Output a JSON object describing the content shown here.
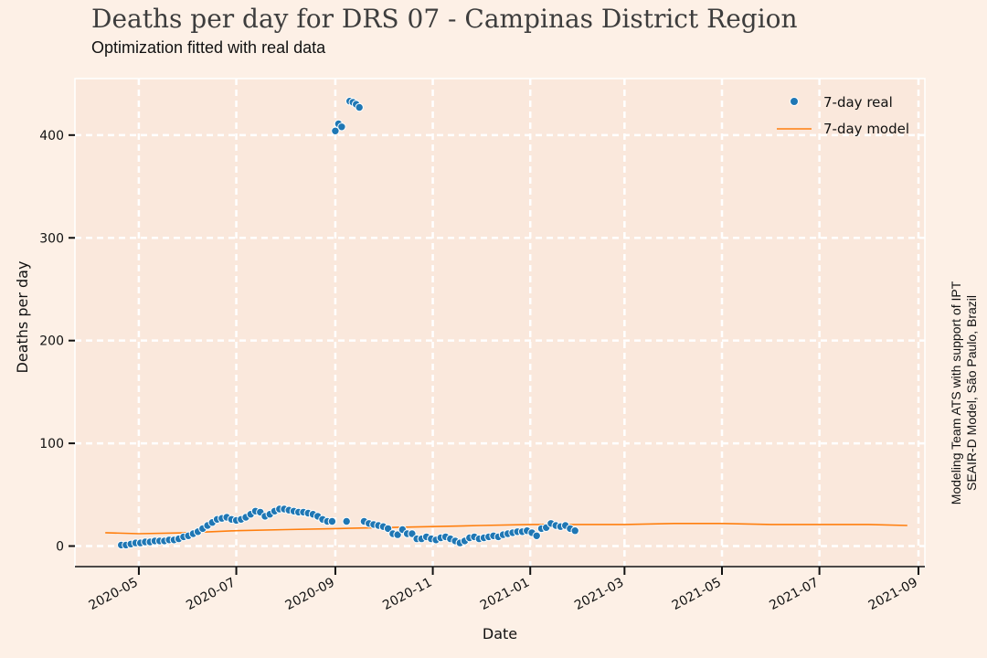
{
  "header": {
    "title": "Deaths per day for DRS 07 - Campinas District Region",
    "subtitle": "Optimization fitted with real data"
  },
  "credit": {
    "line1": "Modeling Team ATS with support of IPT",
    "line2": "SEAIR-D Model, São Paulo, Brazil"
  },
  "colors": {
    "background": "#fdf0e6",
    "plot_background": "#fae8dc",
    "grid": "#ffffff",
    "real": "#1f77b4",
    "model": "#ff7f0e"
  },
  "chart_data": {
    "type": "scatter",
    "xlabel": "Date",
    "ylabel": "Deaths per day",
    "xlim": [
      "2020-03-22",
      "2021-09-05"
    ],
    "ylim": [
      -20,
      455
    ],
    "x_ticks": [
      "2020-05",
      "2020-07",
      "2020-09",
      "2020-11",
      "2021-01",
      "2021-03",
      "2021-05",
      "2021-07",
      "2021-09"
    ],
    "y_ticks": [
      0,
      100,
      200,
      300,
      400
    ],
    "grid": true,
    "legend_position": "top-right",
    "series": [
      {
        "name": "7-day real",
        "kind": "scatter",
        "points": [
          [
            "2020-04-20",
            1
          ],
          [
            "2020-04-23",
            1
          ],
          [
            "2020-04-26",
            2
          ],
          [
            "2020-04-29",
            3
          ],
          [
            "2020-05-02",
            3
          ],
          [
            "2020-05-05",
            4
          ],
          [
            "2020-05-08",
            4
          ],
          [
            "2020-05-11",
            5
          ],
          [
            "2020-05-14",
            5
          ],
          [
            "2020-05-17",
            5
          ],
          [
            "2020-05-20",
            6
          ],
          [
            "2020-05-23",
            6
          ],
          [
            "2020-05-26",
            7
          ],
          [
            "2020-05-29",
            9
          ],
          [
            "2020-06-01",
            10
          ],
          [
            "2020-06-04",
            12
          ],
          [
            "2020-06-07",
            14
          ],
          [
            "2020-06-10",
            17
          ],
          [
            "2020-06-13",
            20
          ],
          [
            "2020-06-16",
            23
          ],
          [
            "2020-06-19",
            26
          ],
          [
            "2020-06-22",
            27
          ],
          [
            "2020-06-25",
            28
          ],
          [
            "2020-06-28",
            26
          ],
          [
            "2020-07-01",
            25
          ],
          [
            "2020-07-04",
            26
          ],
          [
            "2020-07-07",
            28
          ],
          [
            "2020-07-10",
            31
          ],
          [
            "2020-07-13",
            34
          ],
          [
            "2020-07-16",
            33
          ],
          [
            "2020-07-19",
            29
          ],
          [
            "2020-07-22",
            31
          ],
          [
            "2020-07-25",
            34
          ],
          [
            "2020-07-28",
            36
          ],
          [
            "2020-07-31",
            36
          ],
          [
            "2020-08-03",
            35
          ],
          [
            "2020-08-06",
            34
          ],
          [
            "2020-08-09",
            33
          ],
          [
            "2020-08-12",
            33
          ],
          [
            "2020-08-15",
            32
          ],
          [
            "2020-08-18",
            31
          ],
          [
            "2020-08-21",
            29
          ],
          [
            "2020-08-24",
            26
          ],
          [
            "2020-08-27",
            24
          ],
          [
            "2020-08-30",
            24
          ],
          [
            "2020-09-01",
            404
          ],
          [
            "2020-09-03",
            411
          ],
          [
            "2020-09-05",
            408
          ],
          [
            "2020-09-08",
            24
          ],
          [
            "2020-09-10",
            433
          ],
          [
            "2020-09-12",
            432
          ],
          [
            "2020-09-14",
            430
          ],
          [
            "2020-09-16",
            427
          ],
          [
            "2020-09-19",
            24
          ],
          [
            "2020-09-22",
            22
          ],
          [
            "2020-09-25",
            21
          ],
          [
            "2020-09-28",
            20
          ],
          [
            "2020-10-01",
            19
          ],
          [
            "2020-10-04",
            17
          ],
          [
            "2020-10-07",
            12
          ],
          [
            "2020-10-10",
            11
          ],
          [
            "2020-10-13",
            16
          ],
          [
            "2020-10-16",
            12
          ],
          [
            "2020-10-19",
            12
          ],
          [
            "2020-10-22",
            7
          ],
          [
            "2020-10-25",
            7
          ],
          [
            "2020-10-28",
            9
          ],
          [
            "2020-10-31",
            7
          ],
          [
            "2020-11-03",
            6
          ],
          [
            "2020-11-06",
            8
          ],
          [
            "2020-11-09",
            9
          ],
          [
            "2020-11-12",
            7
          ],
          [
            "2020-11-15",
            5
          ],
          [
            "2020-11-18",
            3
          ],
          [
            "2020-11-21",
            5
          ],
          [
            "2020-11-24",
            8
          ],
          [
            "2020-11-27",
            9
          ],
          [
            "2020-11-30",
            7
          ],
          [
            "2020-12-03",
            8
          ],
          [
            "2020-12-06",
            9
          ],
          [
            "2020-12-09",
            10
          ],
          [
            "2020-12-12",
            9
          ],
          [
            "2020-12-15",
            11
          ],
          [
            "2020-12-18",
            12
          ],
          [
            "2020-12-21",
            13
          ],
          [
            "2020-12-24",
            14
          ],
          [
            "2020-12-27",
            14
          ],
          [
            "2020-12-30",
            15
          ],
          [
            "2021-01-02",
            13
          ],
          [
            "2021-01-05",
            10
          ],
          [
            "2021-01-08",
            17
          ],
          [
            "2021-01-11",
            18
          ],
          [
            "2021-01-14",
            22
          ],
          [
            "2021-01-17",
            20
          ],
          [
            "2021-01-20",
            19
          ],
          [
            "2021-01-23",
            20
          ],
          [
            "2021-01-26",
            17
          ],
          [
            "2021-01-29",
            15
          ]
        ]
      },
      {
        "name": "7-day model",
        "kind": "line",
        "points": [
          [
            "2020-04-10",
            13
          ],
          [
            "2020-05-01",
            12
          ],
          [
            "2020-06-01",
            13
          ],
          [
            "2020-07-01",
            15
          ],
          [
            "2020-08-01",
            16
          ],
          [
            "2020-09-01",
            17
          ],
          [
            "2020-10-01",
            18
          ],
          [
            "2020-11-01",
            19
          ],
          [
            "2020-12-01",
            20
          ],
          [
            "2021-01-01",
            21
          ],
          [
            "2021-02-01",
            21
          ],
          [
            "2021-03-01",
            21
          ],
          [
            "2021-04-01",
            22
          ],
          [
            "2021-05-01",
            22
          ],
          [
            "2021-06-01",
            21
          ],
          [
            "2021-07-01",
            21
          ],
          [
            "2021-08-01",
            21
          ],
          [
            "2021-08-25",
            20
          ]
        ]
      }
    ]
  }
}
